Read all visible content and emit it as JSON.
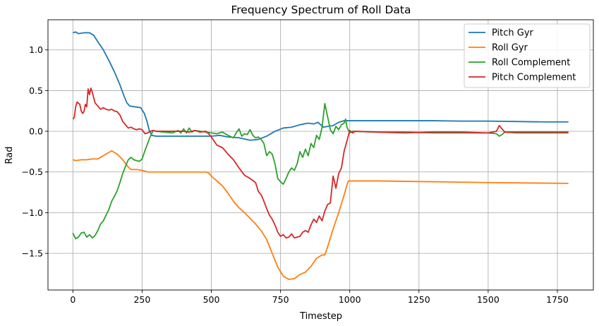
{
  "chart_data": {
    "type": "line",
    "title": "Frequency Spectrum of Roll Data",
    "xlabel": "Timestep",
    "ylabel": "Rad",
    "xlim": [
      -90,
      1880
    ],
    "ylim": [
      -1.95,
      1.37
    ],
    "xticks": [
      0,
      250,
      500,
      750,
      1000,
      1250,
      1500,
      1750
    ],
    "yticks": [
      -1.5,
      -1.0,
      -0.5,
      0.0,
      0.5,
      1.0
    ],
    "ytick_labels": [
      "−1.5",
      "−1.0",
      "−0.5",
      "0.0",
      "0.5",
      "1.0"
    ],
    "grid": true,
    "legend_position": "top-right",
    "series": [
      {
        "name": "Pitch Gyr",
        "color": "#1f77b4",
        "points": [
          [
            0,
            1.21
          ],
          [
            10,
            1.22
          ],
          [
            20,
            1.2
          ],
          [
            40,
            1.21
          ],
          [
            60,
            1.21
          ],
          [
            75,
            1.18
          ],
          [
            90,
            1.1
          ],
          [
            110,
            1.0
          ],
          [
            130,
            0.87
          ],
          [
            150,
            0.73
          ],
          [
            170,
            0.57
          ],
          [
            185,
            0.43
          ],
          [
            195,
            0.35
          ],
          [
            205,
            0.31
          ],
          [
            225,
            0.3
          ],
          [
            245,
            0.29
          ],
          [
            258,
            0.22
          ],
          [
            268,
            0.12
          ],
          [
            275,
            0.02
          ],
          [
            285,
            -0.05
          ],
          [
            300,
            -0.06
          ],
          [
            400,
            -0.06
          ],
          [
            500,
            -0.06
          ],
          [
            530,
            -0.05
          ],
          [
            560,
            -0.07
          ],
          [
            600,
            -0.08
          ],
          [
            640,
            -0.11
          ],
          [
            670,
            -0.1
          ],
          [
            700,
            -0.06
          ],
          [
            730,
            0.0
          ],
          [
            760,
            0.04
          ],
          [
            790,
            0.05
          ],
          [
            820,
            0.08
          ],
          [
            850,
            0.1
          ],
          [
            870,
            0.09
          ],
          [
            885,
            0.11
          ],
          [
            895,
            0.08
          ],
          [
            905,
            0.05
          ],
          [
            920,
            0.06
          ],
          [
            940,
            0.07
          ],
          [
            960,
            0.11
          ],
          [
            980,
            0.13
          ],
          [
            1000,
            0.13
          ],
          [
            1100,
            0.13
          ],
          [
            1200,
            0.13
          ],
          [
            1300,
            0.13
          ],
          [
            1400,
            0.125
          ],
          [
            1500,
            0.125
          ],
          [
            1600,
            0.12
          ],
          [
            1700,
            0.115
          ],
          [
            1790,
            0.115
          ]
        ]
      },
      {
        "name": "Roll Gyr",
        "color": "#ff7f0e",
        "points": [
          [
            0,
            -0.35
          ],
          [
            10,
            -0.36
          ],
          [
            30,
            -0.35
          ],
          [
            50,
            -0.35
          ],
          [
            70,
            -0.34
          ],
          [
            90,
            -0.34
          ],
          [
            100,
            -0.32
          ],
          [
            120,
            -0.28
          ],
          [
            140,
            -0.24
          ],
          [
            160,
            -0.28
          ],
          [
            180,
            -0.35
          ],
          [
            200,
            -0.44
          ],
          [
            210,
            -0.47
          ],
          [
            230,
            -0.47
          ],
          [
            250,
            -0.48
          ],
          [
            270,
            -0.5
          ],
          [
            300,
            -0.5
          ],
          [
            400,
            -0.5
          ],
          [
            480,
            -0.5
          ],
          [
            490,
            -0.51
          ],
          [
            500,
            -0.55
          ],
          [
            520,
            -0.61
          ],
          [
            540,
            -0.67
          ],
          [
            560,
            -0.76
          ],
          [
            580,
            -0.86
          ],
          [
            600,
            -0.94
          ],
          [
            620,
            -1.0
          ],
          [
            640,
            -1.07
          ],
          [
            660,
            -1.14
          ],
          [
            680,
            -1.22
          ],
          [
            700,
            -1.33
          ],
          [
            720,
            -1.5
          ],
          [
            740,
            -1.67
          ],
          [
            760,
            -1.78
          ],
          [
            780,
            -1.82
          ],
          [
            800,
            -1.81
          ],
          [
            820,
            -1.76
          ],
          [
            840,
            -1.73
          ],
          [
            860,
            -1.66
          ],
          [
            880,
            -1.56
          ],
          [
            900,
            -1.52
          ],
          [
            910,
            -1.52
          ],
          [
            920,
            -1.42
          ],
          [
            940,
            -1.2
          ],
          [
            960,
            -1.0
          ],
          [
            980,
            -0.78
          ],
          [
            990,
            -0.66
          ],
          [
            995,
            -0.61
          ],
          [
            1000,
            -0.61
          ],
          [
            1100,
            -0.61
          ],
          [
            1300,
            -0.62
          ],
          [
            1500,
            -0.63
          ],
          [
            1790,
            -0.64
          ]
        ]
      },
      {
        "name": "Roll Complement",
        "color": "#2ca02c",
        "points": [
          [
            0,
            -1.25
          ],
          [
            10,
            -1.32
          ],
          [
            20,
            -1.3
          ],
          [
            30,
            -1.25
          ],
          [
            40,
            -1.24
          ],
          [
            50,
            -1.3
          ],
          [
            60,
            -1.27
          ],
          [
            70,
            -1.31
          ],
          [
            80,
            -1.28
          ],
          [
            90,
            -1.22
          ],
          [
            100,
            -1.14
          ],
          [
            110,
            -1.1
          ],
          [
            120,
            -1.03
          ],
          [
            130,
            -0.96
          ],
          [
            140,
            -0.86
          ],
          [
            150,
            -0.8
          ],
          [
            160,
            -0.73
          ],
          [
            170,
            -0.63
          ],
          [
            180,
            -0.52
          ],
          [
            190,
            -0.43
          ],
          [
            200,
            -0.35
          ],
          [
            210,
            -0.32
          ],
          [
            220,
            -0.35
          ],
          [
            230,
            -0.36
          ],
          [
            240,
            -0.37
          ],
          [
            250,
            -0.34
          ],
          [
            260,
            -0.24
          ],
          [
            270,
            -0.15
          ],
          [
            280,
            -0.06
          ],
          [
            290,
            0.01
          ],
          [
            300,
            0.0
          ],
          [
            330,
            -0.01
          ],
          [
            360,
            -0.02
          ],
          [
            380,
            0.01
          ],
          [
            390,
            -0.02
          ],
          [
            400,
            0.03
          ],
          [
            410,
            -0.02
          ],
          [
            420,
            0.04
          ],
          [
            430,
            -0.01
          ],
          [
            440,
            0.01
          ],
          [
            460,
            0.0
          ],
          [
            480,
            -0.01
          ],
          [
            500,
            -0.02
          ],
          [
            520,
            -0.03
          ],
          [
            540,
            -0.01
          ],
          [
            560,
            -0.05
          ],
          [
            580,
            -0.08
          ],
          [
            590,
            -0.02
          ],
          [
            600,
            0.03
          ],
          [
            610,
            -0.06
          ],
          [
            620,
            -0.03
          ],
          [
            630,
            -0.04
          ],
          [
            640,
            0.02
          ],
          [
            650,
            -0.05
          ],
          [
            660,
            -0.08
          ],
          [
            670,
            -0.07
          ],
          [
            680,
            -0.1
          ],
          [
            690,
            -0.15
          ],
          [
            700,
            -0.3
          ],
          [
            710,
            -0.25
          ],
          [
            720,
            -0.28
          ],
          [
            730,
            -0.4
          ],
          [
            740,
            -0.58
          ],
          [
            750,
            -0.62
          ],
          [
            760,
            -0.65
          ],
          [
            770,
            -0.58
          ],
          [
            780,
            -0.5
          ],
          [
            790,
            -0.45
          ],
          [
            800,
            -0.48
          ],
          [
            810,
            -0.4
          ],
          [
            820,
            -0.25
          ],
          [
            830,
            -0.32
          ],
          [
            840,
            -0.22
          ],
          [
            850,
            -0.3
          ],
          [
            860,
            -0.15
          ],
          [
            870,
            -0.2
          ],
          [
            880,
            -0.05
          ],
          [
            890,
            -0.1
          ],
          [
            900,
            0.05
          ],
          [
            910,
            0.34
          ],
          [
            920,
            0.18
          ],
          [
            930,
            0.02
          ],
          [
            940,
            -0.03
          ],
          [
            950,
            0.06
          ],
          [
            960,
            0.02
          ],
          [
            970,
            0.08
          ],
          [
            980,
            0.1
          ],
          [
            985,
            0.15
          ],
          [
            990,
            0.05
          ],
          [
            1000,
            -0.02
          ],
          [
            1010,
            0.0
          ],
          [
            1100,
            -0.01
          ],
          [
            1200,
            -0.01
          ],
          [
            1300,
            -0.02
          ],
          [
            1400,
            -0.02
          ],
          [
            1500,
            -0.02
          ],
          [
            1530,
            -0.03
          ],
          [
            1540,
            -0.06
          ],
          [
            1550,
            -0.04
          ],
          [
            1560,
            -0.01
          ],
          [
            1600,
            -0.02
          ],
          [
            1700,
            -0.02
          ],
          [
            1790,
            -0.02
          ]
        ]
      },
      {
        "name": "Pitch Complement",
        "color": "#d62728",
        "points": [
          [
            0,
            0.15
          ],
          [
            5,
            0.17
          ],
          [
            10,
            0.3
          ],
          [
            15,
            0.36
          ],
          [
            25,
            0.33
          ],
          [
            30,
            0.25
          ],
          [
            35,
            0.22
          ],
          [
            40,
            0.24
          ],
          [
            45,
            0.33
          ],
          [
            50,
            0.3
          ],
          [
            55,
            0.52
          ],
          [
            60,
            0.45
          ],
          [
            65,
            0.53
          ],
          [
            70,
            0.48
          ],
          [
            80,
            0.35
          ],
          [
            90,
            0.31
          ],
          [
            100,
            0.27
          ],
          [
            110,
            0.29
          ],
          [
            120,
            0.27
          ],
          [
            130,
            0.26
          ],
          [
            140,
            0.27
          ],
          [
            150,
            0.25
          ],
          [
            160,
            0.24
          ],
          [
            170,
            0.2
          ],
          [
            180,
            0.12
          ],
          [
            190,
            0.08
          ],
          [
            200,
            0.04
          ],
          [
            210,
            0.05
          ],
          [
            220,
            0.03
          ],
          [
            230,
            0.02
          ],
          [
            240,
            0.03
          ],
          [
            250,
            0.02
          ],
          [
            260,
            -0.03
          ],
          [
            270,
            -0.02
          ],
          [
            280,
            0.0
          ],
          [
            290,
            0.01
          ],
          [
            300,
            0.0
          ],
          [
            350,
            0.0
          ],
          [
            400,
            0.0
          ],
          [
            420,
            -0.01
          ],
          [
            440,
            0.01
          ],
          [
            460,
            -0.01
          ],
          [
            480,
            0.0
          ],
          [
            490,
            -0.03
          ],
          [
            500,
            -0.07
          ],
          [
            510,
            -0.12
          ],
          [
            520,
            -0.17
          ],
          [
            540,
            -0.2
          ],
          [
            560,
            -0.28
          ],
          [
            580,
            -0.35
          ],
          [
            600,
            -0.45
          ],
          [
            620,
            -0.54
          ],
          [
            640,
            -0.58
          ],
          [
            660,
            -0.63
          ],
          [
            670,
            -0.74
          ],
          [
            680,
            -0.78
          ],
          [
            690,
            -0.86
          ],
          [
            700,
            -0.95
          ],
          [
            710,
            -1.03
          ],
          [
            720,
            -1.08
          ],
          [
            730,
            -1.15
          ],
          [
            740,
            -1.24
          ],
          [
            750,
            -1.29
          ],
          [
            760,
            -1.27
          ],
          [
            770,
            -1.31
          ],
          [
            780,
            -1.3
          ],
          [
            790,
            -1.26
          ],
          [
            800,
            -1.31
          ],
          [
            810,
            -1.3
          ],
          [
            820,
            -1.29
          ],
          [
            830,
            -1.24
          ],
          [
            840,
            -1.22
          ],
          [
            850,
            -1.24
          ],
          [
            860,
            -1.15
          ],
          [
            870,
            -1.08
          ],
          [
            880,
            -1.12
          ],
          [
            890,
            -1.04
          ],
          [
            900,
            -1.1
          ],
          [
            910,
            -0.98
          ],
          [
            920,
            -0.9
          ],
          [
            930,
            -0.88
          ],
          [
            940,
            -0.55
          ],
          [
            950,
            -0.7
          ],
          [
            960,
            -0.52
          ],
          [
            970,
            -0.45
          ],
          [
            980,
            -0.24
          ],
          [
            990,
            -0.12
          ],
          [
            1000,
            0.01
          ],
          [
            1010,
            -0.02
          ],
          [
            1020,
            0.0
          ],
          [
            1100,
            -0.01
          ],
          [
            1200,
            -0.02
          ],
          [
            1300,
            -0.01
          ],
          [
            1400,
            -0.01
          ],
          [
            1500,
            -0.02
          ],
          [
            1530,
            0.0
          ],
          [
            1540,
            0.07
          ],
          [
            1550,
            0.03
          ],
          [
            1560,
            -0.01
          ],
          [
            1600,
            -0.01
          ],
          [
            1700,
            -0.01
          ],
          [
            1790,
            -0.01
          ]
        ]
      }
    ]
  }
}
